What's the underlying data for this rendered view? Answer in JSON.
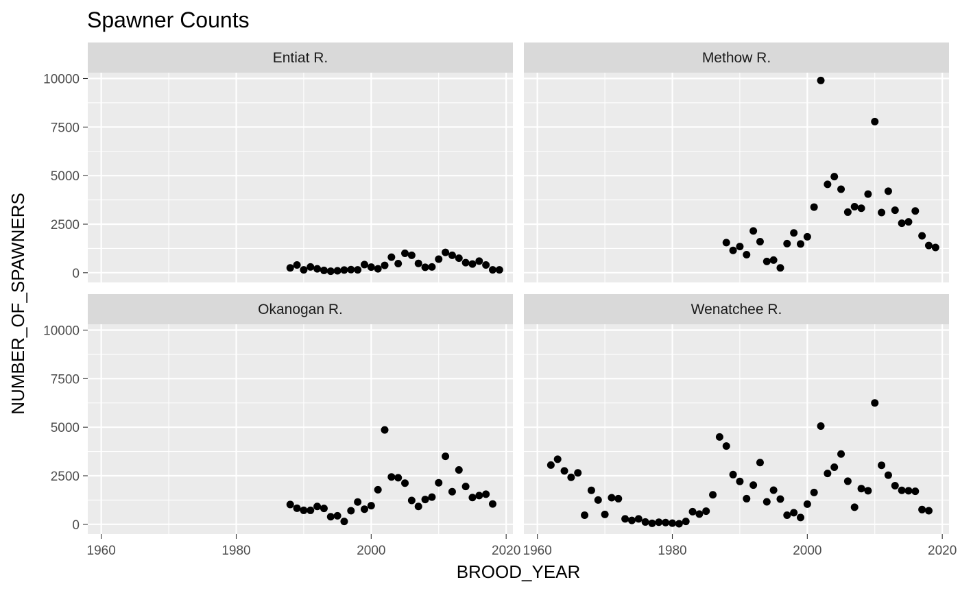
{
  "chart_data": {
    "type": "scatter",
    "title": "Spawner Counts",
    "xlabel": "BROOD_YEAR",
    "ylabel": "NUMBER_OF_SPAWNERS",
    "xlim": [
      1958,
      2021
    ],
    "ylim": [
      -500,
      10300
    ],
    "x_ticks": [
      1960,
      1980,
      2000,
      2020
    ],
    "y_ticks": [
      0,
      2500,
      5000,
      7500,
      10000
    ],
    "grid": true,
    "point_color": "#000000",
    "panel_background": "#EBEBEB",
    "strip_background": "#D9D9D9",
    "panels": [
      {
        "name": "Entiat R.",
        "x": [
          1988,
          1989,
          1990,
          1991,
          1992,
          1993,
          1994,
          1995,
          1996,
          1997,
          1998,
          1999,
          2000,
          2001,
          2002,
          2003,
          2004,
          2005,
          2006,
          2007,
          2008,
          2009,
          2010,
          2011,
          2012,
          2013,
          2014,
          2015,
          2016,
          2017,
          2018,
          2019
        ],
        "y": [
          250,
          400,
          150,
          300,
          200,
          120,
          80,
          100,
          140,
          160,
          150,
          420,
          290,
          200,
          380,
          800,
          470,
          1000,
          900,
          480,
          280,
          300,
          700,
          1050,
          900,
          750,
          520,
          450,
          600,
          400,
          150,
          150
        ]
      },
      {
        "name": "Methow R.",
        "x": [
          1988,
          1989,
          1990,
          1991,
          1992,
          1993,
          1994,
          1995,
          1996,
          1997,
          1998,
          1999,
          2000,
          2001,
          2002,
          2003,
          2004,
          2005,
          2006,
          2007,
          2008,
          2009,
          2010,
          2011,
          2012,
          2013,
          2014,
          2015,
          2016,
          2017,
          2018,
          2019
        ],
        "y": [
          1550,
          1150,
          1350,
          930,
          2150,
          1600,
          580,
          650,
          250,
          1500,
          2050,
          1480,
          1850,
          3380,
          9900,
          4550,
          4950,
          4300,
          3120,
          3400,
          3320,
          4050,
          7780,
          3100,
          4200,
          3220,
          2550,
          2620,
          3180,
          1900,
          1400,
          1300
        ]
      },
      {
        "name": "Okanogan R.",
        "x": [
          1988,
          1989,
          1990,
          1991,
          1992,
          1993,
          1994,
          1995,
          1996,
          1997,
          1998,
          1999,
          2000,
          2001,
          2002,
          2003,
          2004,
          2005,
          2006,
          2007,
          2008,
          2009,
          2010,
          2011,
          2012,
          2013,
          2014,
          2015,
          2016,
          2017,
          2018
        ],
        "y": [
          1020,
          830,
          720,
          720,
          920,
          820,
          390,
          440,
          150,
          700,
          1150,
          780,
          960,
          1780,
          4860,
          2440,
          2400,
          2120,
          1230,
          920,
          1280,
          1400,
          2140,
          3500,
          1680,
          2800,
          1950,
          1380,
          1480,
          1550,
          1050
        ]
      },
      {
        "name": "Wenatchee R.",
        "x": [
          1962,
          1963,
          1964,
          1965,
          1966,
          1967,
          1968,
          1969,
          1970,
          1971,
          1972,
          1973,
          1974,
          1975,
          1976,
          1977,
          1978,
          1979,
          1980,
          1981,
          1982,
          1983,
          1984,
          1985,
          1986,
          1987,
          1988,
          1989,
          1990,
          1991,
          1992,
          1993,
          1994,
          1995,
          1996,
          1997,
          1998,
          1999,
          2000,
          2001,
          2002,
          2003,
          2004,
          2005,
          2006,
          2007,
          2008,
          2009,
          2010,
          2011,
          2012,
          2013,
          2014,
          2015,
          2016,
          2017,
          2018
        ],
        "y": [
          3050,
          3350,
          2750,
          2420,
          2650,
          470,
          1750,
          1250,
          510,
          1370,
          1320,
          280,
          200,
          280,
          120,
          50,
          110,
          90,
          60,
          30,
          150,
          650,
          530,
          680,
          1520,
          4500,
          4030,
          2560,
          2210,
          1320,
          2020,
          3180,
          1160,
          1760,
          1300,
          470,
          600,
          350,
          1040,
          1640,
          5060,
          2620,
          2940,
          3620,
          2220,
          880,
          1840,
          1730,
          6250,
          3040,
          2530,
          1990,
          1750,
          1730,
          1700,
          760,
          700
        ]
      }
    ]
  }
}
